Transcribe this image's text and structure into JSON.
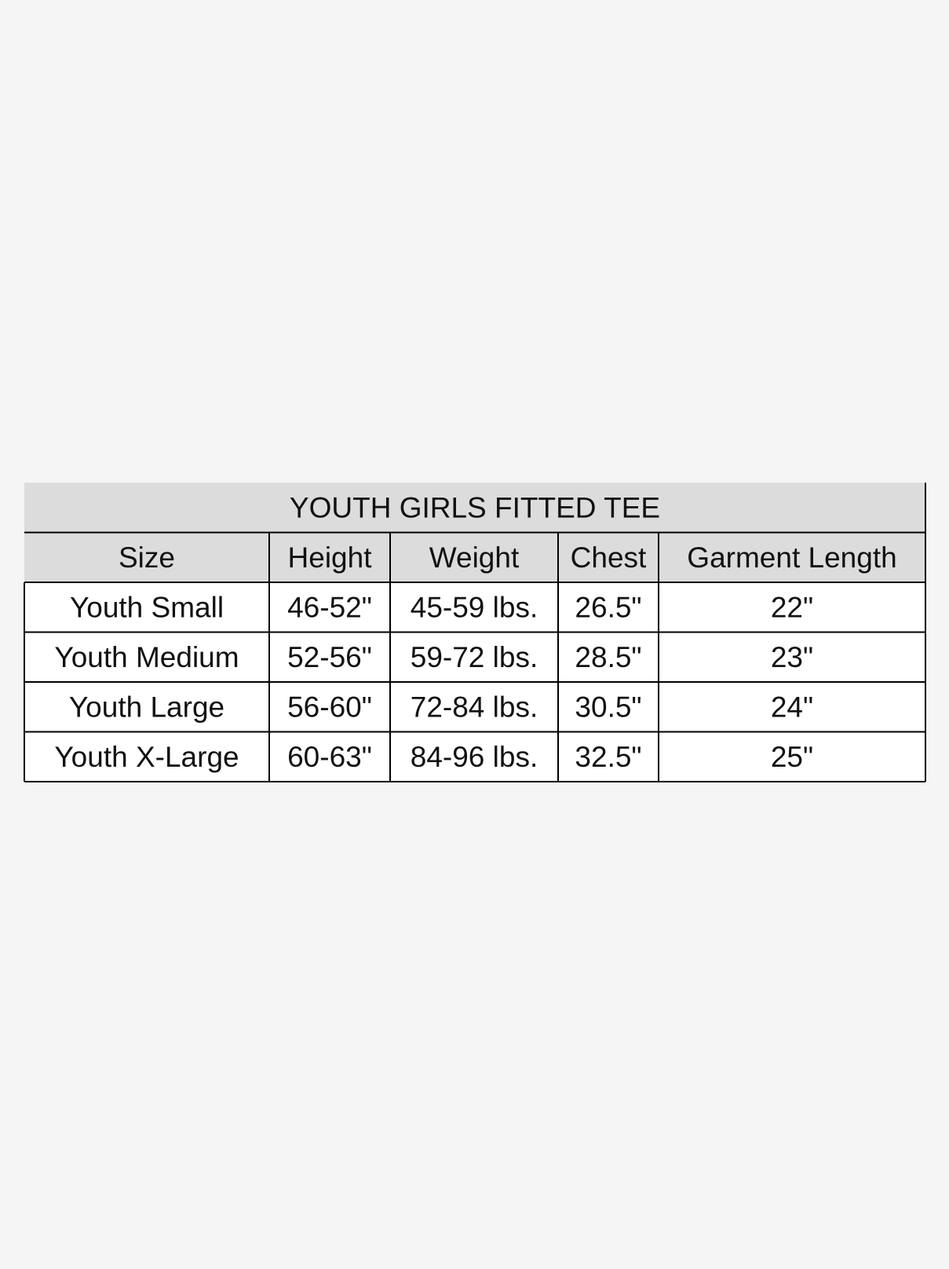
{
  "table": {
    "title": "YOUTH GIRLS FITTED TEE",
    "headers": [
      "Size",
      "Height",
      "Weight",
      "Chest",
      "Garment Length"
    ],
    "rows": [
      [
        "Youth Small",
        "46-52\"",
        "45-59 lbs.",
        "26.5\"",
        "22\""
      ],
      [
        "Youth Medium",
        "52-56\"",
        "59-72 lbs.",
        "28.5\"",
        "23\""
      ],
      [
        "Youth Large",
        "56-60\"",
        "72-84 lbs.",
        "30.5\"",
        "24\""
      ],
      [
        "Youth X-Large",
        "60-63\"",
        "84-96 lbs.",
        "32.5\"",
        "25\""
      ]
    ]
  }
}
